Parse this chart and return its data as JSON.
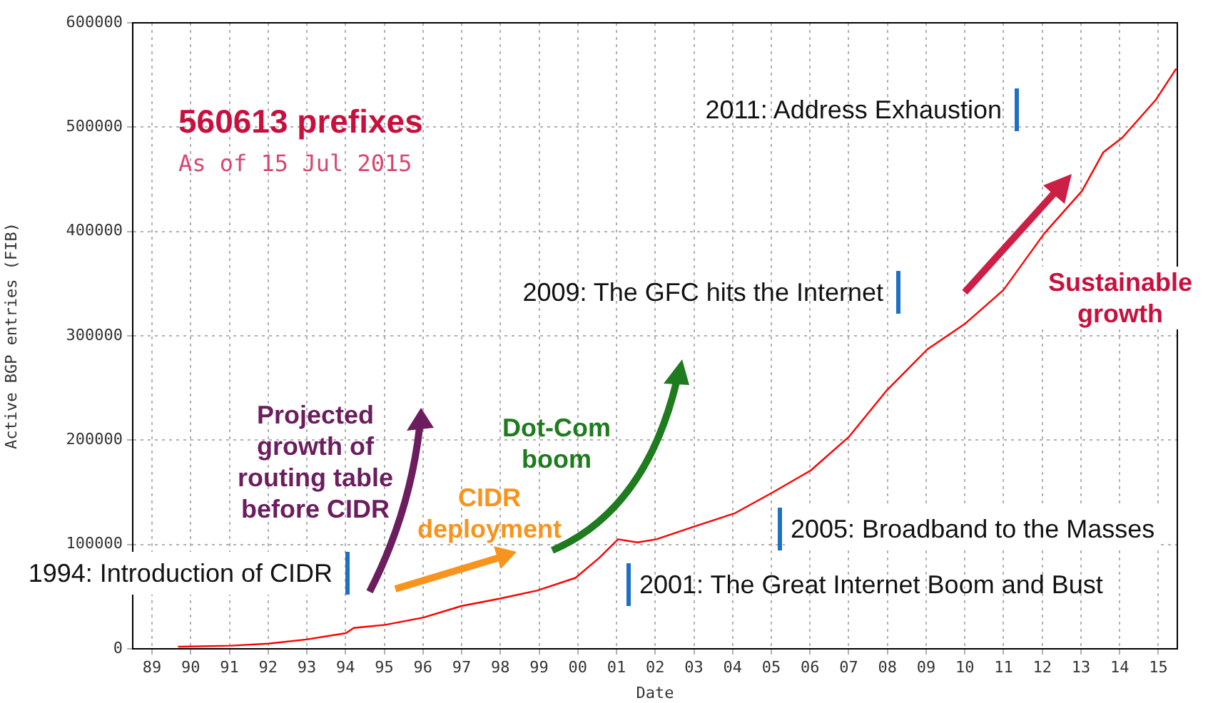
{
  "chart_data": {
    "type": "line",
    "title": "560613 prefixes",
    "subtitle": "As of 15 Jul 2015",
    "xlabel": "Date",
    "ylabel": "Active BGP entries (FIB)",
    "x": [
      1989.67,
      1991.03,
      1992.0,
      1992.99,
      1994.01,
      1994.21,
      1995.02,
      1996.01,
      1996.99,
      1997.97,
      1998.96,
      1999.94,
      2000.55,
      2001.04,
      2001.54,
      2002.03,
      2003.07,
      2004.06,
      2005.04,
      2006.02,
      2007.0,
      2007.99,
      2009.03,
      2010.02,
      2011.0,
      2012.05,
      2013.03,
      2013.58,
      2014.07,
      2014.93,
      2015.46
    ],
    "series": [
      {
        "color": "#ff0000",
        "values": [
          2000,
          3000,
          5000,
          9000,
          15000,
          20000,
          23000,
          30000,
          41000,
          48000,
          56000,
          68000,
          87000,
          105000,
          102000,
          105000,
          118000,
          130000,
          150000,
          171000,
          203000,
          248000,
          287000,
          312000,
          344000,
          398000,
          439000,
          476000,
          490000,
          526000,
          556000
        ]
      }
    ],
    "xlim": [
      1988.5,
      2015.49
    ],
    "xticks": [
      {
        "value": 1989,
        "label": "89"
      },
      {
        "value": 1990,
        "label": "90"
      },
      {
        "value": 1991,
        "label": "91"
      },
      {
        "value": 1992,
        "label": "92"
      },
      {
        "value": 1993,
        "label": "93"
      },
      {
        "value": 1994,
        "label": "94"
      },
      {
        "value": 1995,
        "label": "95"
      },
      {
        "value": 1996,
        "label": "96"
      },
      {
        "value": 1997,
        "label": "97"
      },
      {
        "value": 1998,
        "label": "98"
      },
      {
        "value": 1999,
        "label": "99"
      },
      {
        "value": 2000,
        "label": "00"
      },
      {
        "value": 2001,
        "label": "01"
      },
      {
        "value": 2002,
        "label": "02"
      },
      {
        "value": 2003,
        "label": "03"
      },
      {
        "value": 2004,
        "label": "04"
      },
      {
        "value": 2005,
        "label": "05"
      },
      {
        "value": 2006,
        "label": "06"
      },
      {
        "value": 2007,
        "label": "07"
      },
      {
        "value": 2008,
        "label": "08"
      },
      {
        "value": 2009,
        "label": "09"
      },
      {
        "value": 2010,
        "label": "10"
      },
      {
        "value": 2011,
        "label": "11"
      },
      {
        "value": 2012,
        "label": "12"
      },
      {
        "value": 2013,
        "label": "13"
      },
      {
        "value": 2014,
        "label": "14"
      },
      {
        "value": 2015,
        "label": "15"
      }
    ],
    "ylim": [
      0,
      600000
    ],
    "yticks": [
      0,
      100000,
      200000,
      300000,
      400000,
      500000,
      600000
    ],
    "grid": true,
    "legend": false,
    "marker": "none",
    "line_style": "solid",
    "annotations": [
      "1994: Introduction of CIDR",
      "2001: The Great Internet Boom and Bust",
      "2005: Broadband to the Masses",
      "2009: The GFC hits the Internet",
      "2011: Address Exhaustion",
      "Projected growth of routing table before CIDR",
      "CIDR deployment",
      "Dot-Com boom",
      "Sustainable growth"
    ]
  }
}
